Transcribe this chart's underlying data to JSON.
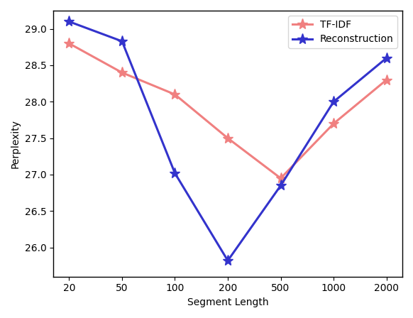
{
  "x_positions": [
    0,
    1,
    2,
    3,
    4,
    5,
    6
  ],
  "x_labels": [
    "20",
    "50",
    "100",
    "200",
    "500",
    "1000",
    "2000"
  ],
  "tfidf_y": [
    28.8,
    28.4,
    28.1,
    27.5,
    26.95,
    27.7,
    28.3
  ],
  "reconstruction_y": [
    29.1,
    28.83,
    27.02,
    25.82,
    26.85,
    28.0,
    28.6
  ],
  "tfidf_color": "#F08080",
  "reconstruction_color": "#3333CC",
  "tfidf_label": "TF-IDF",
  "reconstruction_label": "Reconstruction",
  "xlabel": "Segment Length",
  "ylabel": "Perplexity",
  "ylim": [
    25.6,
    29.25
  ],
  "yticks": [
    26.0,
    26.5,
    27.0,
    27.5,
    28.0,
    28.5,
    29.0
  ],
  "marker": "*",
  "markersize": 11,
  "linewidth": 2.2,
  "legend_loc": "upper right",
  "figsize": [
    5.82,
    4.48
  ],
  "dpi": 100,
  "spine_color": "#555555"
}
